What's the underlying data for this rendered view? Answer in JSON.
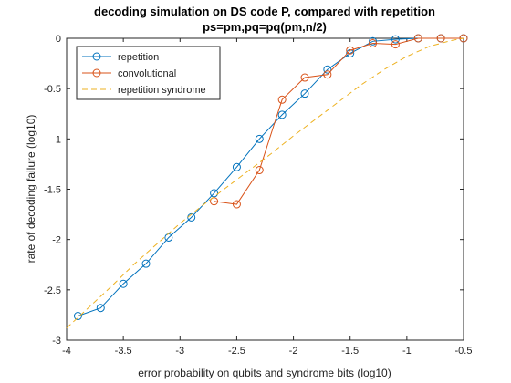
{
  "chart_data": {
    "type": "line",
    "title": "decoding simulation on DS code P, compared with repetition",
    "subtitle": "ps=pm,pq=pq(pm,n/2)",
    "xlabel": "error probability on qubits and syndrome bits (log10)",
    "ylabel": "rate of decoding failure (log10)",
    "xlim": [
      -4,
      -0.5
    ],
    "ylim": [
      -3,
      0
    ],
    "xticks": [
      -4,
      -3.5,
      -3,
      -2.5,
      -2,
      -1.5,
      -1,
      -0.5
    ],
    "xtick_labels": [
      "-4",
      "-3.5",
      "-3",
      "-2.5",
      "-2",
      "-1.5",
      "-1",
      "-0.5"
    ],
    "yticks": [
      -3,
      -2.5,
      -2,
      -1.5,
      -1,
      -0.5,
      0
    ],
    "ytick_labels": [
      "-3",
      "-2.5",
      "-2",
      "-1.5",
      "-1",
      "-0.5",
      "0"
    ],
    "grid": false,
    "legend_position": "top-left",
    "series": [
      {
        "name": "repetition",
        "color": "#0072BD",
        "style": "solid",
        "marker": "circle",
        "x": [
          -3.9,
          -3.7,
          -3.5,
          -3.3,
          -3.1,
          -2.9,
          -2.7,
          -2.5,
          -2.3,
          -2.1,
          -1.9,
          -1.7,
          -1.5,
          -1.3,
          -1.1,
          -0.9,
          -0.7,
          -0.5
        ],
        "y": [
          -2.76,
          -2.68,
          -2.44,
          -2.24,
          -1.98,
          -1.78,
          -1.54,
          -1.28,
          -1.0,
          -0.76,
          -0.55,
          -0.31,
          -0.15,
          -0.03,
          -0.01,
          0,
          0,
          0
        ]
      },
      {
        "name": "convolutional",
        "color": "#D95319",
        "style": "solid",
        "marker": "circle",
        "x": [
          -2.7,
          -2.5,
          -2.3,
          -2.1,
          -1.9,
          -1.7,
          -1.5,
          -1.3,
          -1.1,
          -0.9,
          -0.7,
          -0.5
        ],
        "y": [
          -1.62,
          -1.65,
          -1.31,
          -0.61,
          -0.39,
          -0.36,
          -0.12,
          -0.05,
          -0.06,
          0,
          0,
          0
        ]
      },
      {
        "name": "repetition syndrome",
        "color": "#EDB120",
        "style": "dashed",
        "marker": "none",
        "x": [
          -4.0,
          -3.8,
          -3.6,
          -3.4,
          -3.2,
          -3.0,
          -2.8,
          -2.6,
          -2.4,
          -2.2,
          -2.0,
          -1.8,
          -1.6,
          -1.4,
          -1.2,
          -1.0,
          -0.8,
          -0.6,
          -0.5
        ],
        "y": [
          -2.88,
          -2.67,
          -2.46,
          -2.24,
          -2.04,
          -1.84,
          -1.66,
          -1.49,
          -1.32,
          -1.15,
          -0.97,
          -0.8,
          -0.63,
          -0.46,
          -0.31,
          -0.18,
          -0.08,
          -0.02,
          0
        ]
      }
    ]
  }
}
